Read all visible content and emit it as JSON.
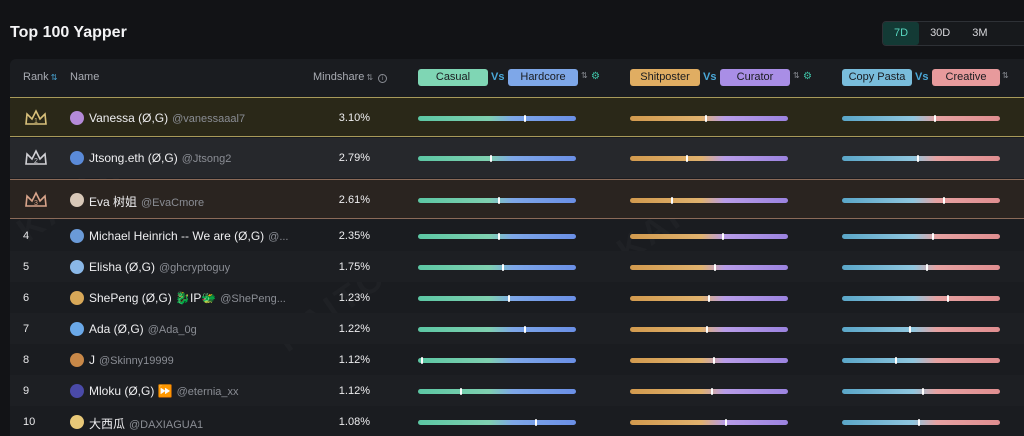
{
  "page": {
    "title": "Top 100 Yapper"
  },
  "range_tabs": [
    {
      "label": "7D",
      "active": true
    },
    {
      "label": "30D",
      "active": false
    },
    {
      "label": "3M",
      "active": false
    }
  ],
  "table": {
    "headers": {
      "rank": "Rank",
      "name": "Name",
      "mindshare": "Mindshare"
    },
    "comparisons": [
      {
        "left": "Casual",
        "vs": "Vs",
        "right": "Hardcore",
        "left_color": "#7fd6b4",
        "right_color": "#7ea7e8"
      },
      {
        "left": "Shitposter",
        "vs": "Vs",
        "right": "Curator",
        "left_color": "#e0ad62",
        "right_color": "#a98ee6"
      },
      {
        "left": "Copy Pasta",
        "vs": "Vs",
        "right": "Creative",
        "left_color": "#79bddc",
        "right_color": "#e79a9c"
      }
    ],
    "rows": [
      {
        "rank": "1",
        "name": "Vanessa (Ø,G)",
        "handle": "@vanessaaal7",
        "mindshare": "3.10%",
        "bars": [
          0.68,
          0.48,
          0.59
        ]
      },
      {
        "rank": "2",
        "name": "Jtsong.eth (Ø,G)",
        "handle": "@Jtsong2",
        "mindshare": "2.79%",
        "bars": [
          0.46,
          0.36,
          0.48
        ]
      },
      {
        "rank": "3",
        "name": "Eva 树姐",
        "handle": "@EvaCmore",
        "mindshare": "2.61%",
        "bars": [
          0.51,
          0.26,
          0.65
        ]
      },
      {
        "rank": "4",
        "name": "Michael Heinrich -- We are (Ø,G)",
        "handle": "@...",
        "mindshare": "2.35%",
        "bars": [
          0.51,
          0.59,
          0.58
        ]
      },
      {
        "rank": "5",
        "name": "Elisha (Ø,G)",
        "handle": "@ghcryptoguy",
        "mindshare": "1.75%",
        "bars": [
          0.54,
          0.54,
          0.54
        ]
      },
      {
        "rank": "6",
        "name": "ShePeng (Ø,G) 🐉IP🐲",
        "handle": "@ShePeng...",
        "mindshare": "1.23%",
        "bars": [
          0.58,
          0.5,
          0.67
        ]
      },
      {
        "rank": "7",
        "name": "Ada (Ø,G)",
        "handle": "@Ada_0g",
        "mindshare": "1.22%",
        "bars": [
          0.68,
          0.49,
          0.43
        ]
      },
      {
        "rank": "8",
        "name": "J",
        "handle": "@Skinny19999",
        "mindshare": "1.12%",
        "bars": [
          0.02,
          0.53,
          0.34
        ]
      },
      {
        "rank": "9",
        "name": "Mloku (Ø,G) ⏩",
        "handle": "@eternia_xx",
        "mindshare": "1.12%",
        "bars": [
          0.27,
          0.52,
          0.51
        ]
      },
      {
        "rank": "10",
        "name": "大西瓜",
        "handle": "@DAXIAGUA1",
        "mindshare": "1.08%",
        "bars": [
          0.75,
          0.61,
          0.49
        ]
      }
    ]
  },
  "watermark": "KAITO"
}
